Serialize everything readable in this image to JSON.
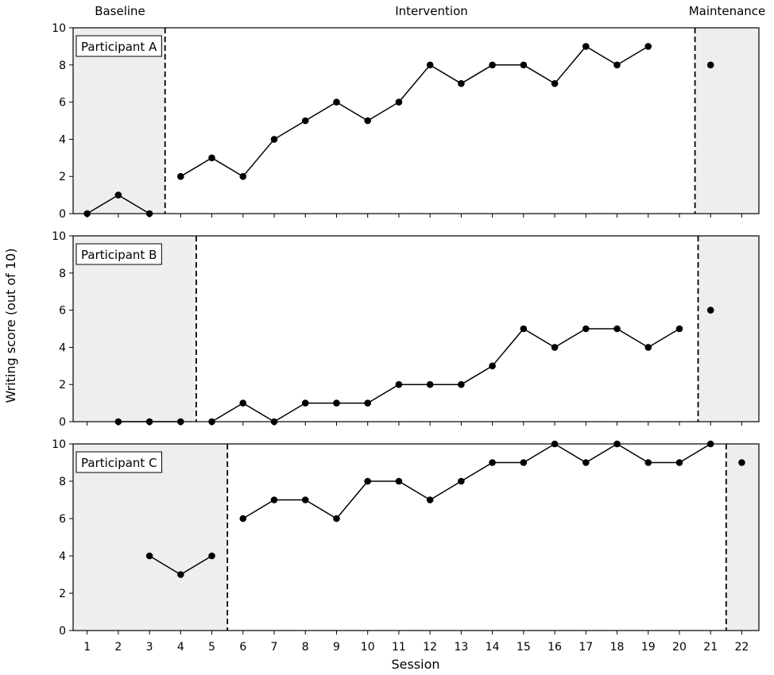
{
  "chart_data": {
    "type": "line",
    "xlabel": "Session",
    "ylabel": "Writing score (out of 10)",
    "xlim": [
      1,
      22
    ],
    "ylim": [
      0,
      10
    ],
    "x_ticks": [
      1,
      2,
      3,
      4,
      5,
      6,
      7,
      8,
      9,
      10,
      11,
      12,
      13,
      14,
      15,
      16,
      17,
      18,
      19,
      20,
      21,
      22
    ],
    "y_ticks": [
      0,
      2,
      4,
      6,
      8,
      10
    ],
    "phase_labels": [
      "Baseline",
      "Intervention",
      "Maintenance"
    ],
    "grid": false,
    "panels": [
      {
        "label": "Participant A",
        "baseline_end": 3.5,
        "maintenance_start": 20.5,
        "baseline": {
          "x": [
            1,
            2,
            3
          ],
          "y": [
            0,
            1,
            0
          ]
        },
        "intervention": {
          "x": [
            4,
            5,
            6,
            7,
            8,
            9,
            10,
            11,
            12,
            13,
            14,
            15,
            16,
            17,
            18,
            19
          ],
          "y": [
            2,
            3,
            2,
            4,
            5,
            6,
            5,
            6,
            8,
            7,
            8,
            8,
            7,
            9,
            8,
            9
          ]
        },
        "maintenance": {
          "x": [
            21
          ],
          "y": [
            8
          ]
        }
      },
      {
        "label": "Participant B",
        "baseline_end": 4.5,
        "maintenance_start": 20.6,
        "baseline": {
          "x": [
            2,
            3,
            4
          ],
          "y": [
            0,
            0,
            0
          ]
        },
        "intervention": {
          "x": [
            5,
            6,
            7,
            8,
            9,
            10,
            11,
            12,
            13,
            14,
            15,
            16,
            17,
            18,
            19,
            20
          ],
          "y": [
            0,
            1,
            0,
            1,
            1,
            1,
            2,
            2,
            2,
            3,
            5,
            4,
            5,
            5,
            4,
            5
          ]
        },
        "maintenance": {
          "x": [
            21
          ],
          "y": [
            6
          ]
        }
      },
      {
        "label": "Participant C",
        "baseline_end": 5.5,
        "maintenance_start": 21.5,
        "baseline": {
          "x": [
            3,
            4,
            5
          ],
          "y": [
            4,
            3,
            4
          ]
        },
        "intervention": {
          "x": [
            6,
            7,
            8,
            9,
            10,
            11,
            12,
            13,
            14,
            15,
            16,
            17,
            18,
            19,
            20,
            21
          ],
          "y": [
            6,
            7,
            7,
            6,
            8,
            8,
            7,
            8,
            9,
            9,
            10,
            9,
            10,
            9,
            9,
            10
          ]
        },
        "maintenance": {
          "x": [
            22
          ],
          "y": [
            9
          ]
        }
      }
    ]
  },
  "colors": {
    "shade": "#eeeeee",
    "line": "#000000",
    "marker": "#000000"
  }
}
